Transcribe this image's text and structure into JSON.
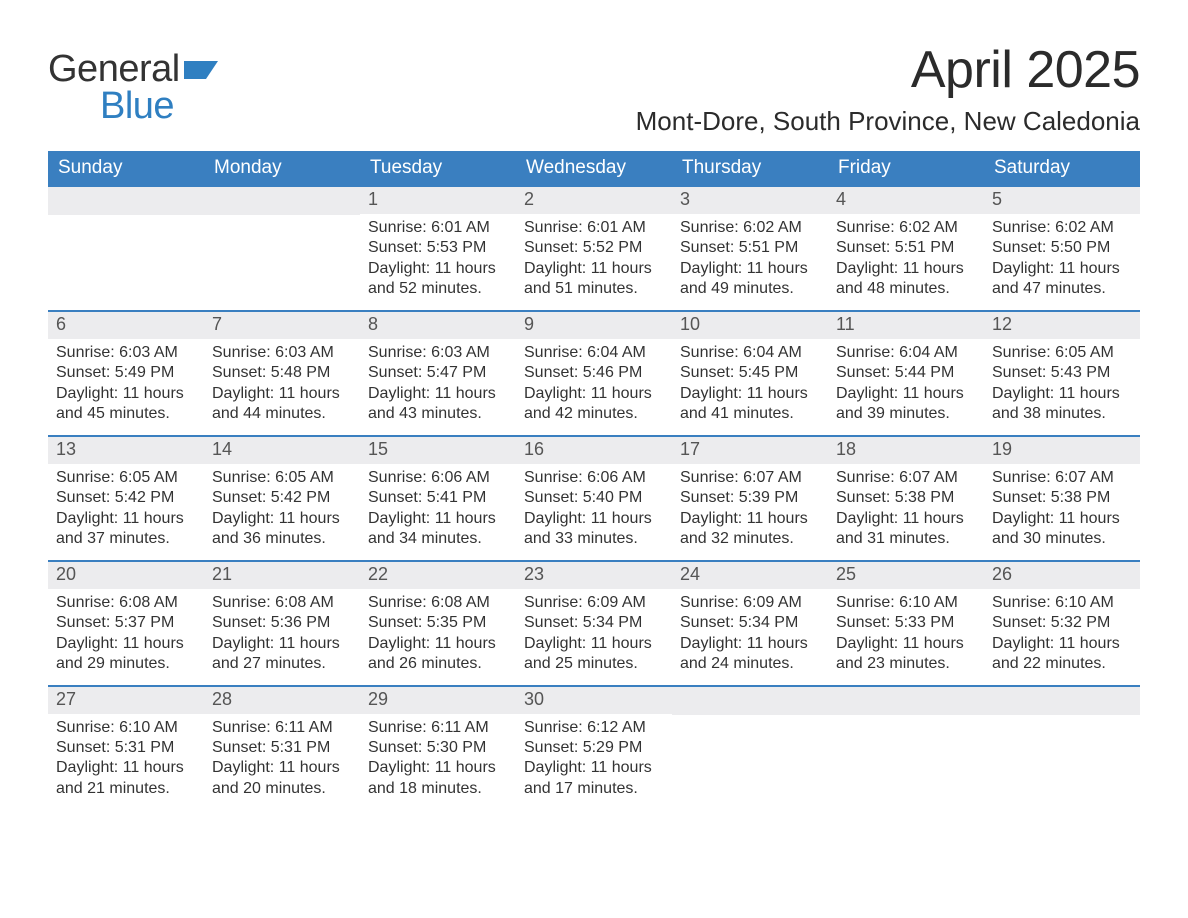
{
  "brand": {
    "word1": "General",
    "word2": "Blue",
    "text_color": "#333333",
    "accent_color": "#2f7fc1"
  },
  "title": "April 2025",
  "location": "Mont-Dore, South Province, New Caledonia",
  "colors": {
    "header_bg": "#3a7fc0",
    "header_text": "#ffffff",
    "daynum_bg": "#ececee",
    "daynum_text": "#555555",
    "body_text": "#333333",
    "week_divider": "#3a7fc0",
    "page_bg": "#ffffff"
  },
  "typography": {
    "title_fontsize": 52,
    "location_fontsize": 26,
    "dow_fontsize": 19,
    "daynum_fontsize": 18,
    "body_fontsize": 16
  },
  "days_of_week": [
    "Sunday",
    "Monday",
    "Tuesday",
    "Wednesday",
    "Thursday",
    "Friday",
    "Saturday"
  ],
  "weeks": [
    [
      {
        "n": "",
        "lines": []
      },
      {
        "n": "",
        "lines": []
      },
      {
        "n": "1",
        "lines": [
          "Sunrise: 6:01 AM",
          "Sunset: 5:53 PM",
          "Daylight: 11 hours and 52 minutes."
        ]
      },
      {
        "n": "2",
        "lines": [
          "Sunrise: 6:01 AM",
          "Sunset: 5:52 PM",
          "Daylight: 11 hours and 51 minutes."
        ]
      },
      {
        "n": "3",
        "lines": [
          "Sunrise: 6:02 AM",
          "Sunset: 5:51 PM",
          "Daylight: 11 hours and 49 minutes."
        ]
      },
      {
        "n": "4",
        "lines": [
          "Sunrise: 6:02 AM",
          "Sunset: 5:51 PM",
          "Daylight: 11 hours and 48 minutes."
        ]
      },
      {
        "n": "5",
        "lines": [
          "Sunrise: 6:02 AM",
          "Sunset: 5:50 PM",
          "Daylight: 11 hours and 47 minutes."
        ]
      }
    ],
    [
      {
        "n": "6",
        "lines": [
          "Sunrise: 6:03 AM",
          "Sunset: 5:49 PM",
          "Daylight: 11 hours and 45 minutes."
        ]
      },
      {
        "n": "7",
        "lines": [
          "Sunrise: 6:03 AM",
          "Sunset: 5:48 PM",
          "Daylight: 11 hours and 44 minutes."
        ]
      },
      {
        "n": "8",
        "lines": [
          "Sunrise: 6:03 AM",
          "Sunset: 5:47 PM",
          "Daylight: 11 hours and 43 minutes."
        ]
      },
      {
        "n": "9",
        "lines": [
          "Sunrise: 6:04 AM",
          "Sunset: 5:46 PM",
          "Daylight: 11 hours and 42 minutes."
        ]
      },
      {
        "n": "10",
        "lines": [
          "Sunrise: 6:04 AM",
          "Sunset: 5:45 PM",
          "Daylight: 11 hours and 41 minutes."
        ]
      },
      {
        "n": "11",
        "lines": [
          "Sunrise: 6:04 AM",
          "Sunset: 5:44 PM",
          "Daylight: 11 hours and 39 minutes."
        ]
      },
      {
        "n": "12",
        "lines": [
          "Sunrise: 6:05 AM",
          "Sunset: 5:43 PM",
          "Daylight: 11 hours and 38 minutes."
        ]
      }
    ],
    [
      {
        "n": "13",
        "lines": [
          "Sunrise: 6:05 AM",
          "Sunset: 5:42 PM",
          "Daylight: 11 hours and 37 minutes."
        ]
      },
      {
        "n": "14",
        "lines": [
          "Sunrise: 6:05 AM",
          "Sunset: 5:42 PM",
          "Daylight: 11 hours and 36 minutes."
        ]
      },
      {
        "n": "15",
        "lines": [
          "Sunrise: 6:06 AM",
          "Sunset: 5:41 PM",
          "Daylight: 11 hours and 34 minutes."
        ]
      },
      {
        "n": "16",
        "lines": [
          "Sunrise: 6:06 AM",
          "Sunset: 5:40 PM",
          "Daylight: 11 hours and 33 minutes."
        ]
      },
      {
        "n": "17",
        "lines": [
          "Sunrise: 6:07 AM",
          "Sunset: 5:39 PM",
          "Daylight: 11 hours and 32 minutes."
        ]
      },
      {
        "n": "18",
        "lines": [
          "Sunrise: 6:07 AM",
          "Sunset: 5:38 PM",
          "Daylight: 11 hours and 31 minutes."
        ]
      },
      {
        "n": "19",
        "lines": [
          "Sunrise: 6:07 AM",
          "Sunset: 5:38 PM",
          "Daylight: 11 hours and 30 minutes."
        ]
      }
    ],
    [
      {
        "n": "20",
        "lines": [
          "Sunrise: 6:08 AM",
          "Sunset: 5:37 PM",
          "Daylight: 11 hours and 29 minutes."
        ]
      },
      {
        "n": "21",
        "lines": [
          "Sunrise: 6:08 AM",
          "Sunset: 5:36 PM",
          "Daylight: 11 hours and 27 minutes."
        ]
      },
      {
        "n": "22",
        "lines": [
          "Sunrise: 6:08 AM",
          "Sunset: 5:35 PM",
          "Daylight: 11 hours and 26 minutes."
        ]
      },
      {
        "n": "23",
        "lines": [
          "Sunrise: 6:09 AM",
          "Sunset: 5:34 PM",
          "Daylight: 11 hours and 25 minutes."
        ]
      },
      {
        "n": "24",
        "lines": [
          "Sunrise: 6:09 AM",
          "Sunset: 5:34 PM",
          "Daylight: 11 hours and 24 minutes."
        ]
      },
      {
        "n": "25",
        "lines": [
          "Sunrise: 6:10 AM",
          "Sunset: 5:33 PM",
          "Daylight: 11 hours and 23 minutes."
        ]
      },
      {
        "n": "26",
        "lines": [
          "Sunrise: 6:10 AM",
          "Sunset: 5:32 PM",
          "Daylight: 11 hours and 22 minutes."
        ]
      }
    ],
    [
      {
        "n": "27",
        "lines": [
          "Sunrise: 6:10 AM",
          "Sunset: 5:31 PM",
          "Daylight: 11 hours and 21 minutes."
        ]
      },
      {
        "n": "28",
        "lines": [
          "Sunrise: 6:11 AM",
          "Sunset: 5:31 PM",
          "Daylight: 11 hours and 20 minutes."
        ]
      },
      {
        "n": "29",
        "lines": [
          "Sunrise: 6:11 AM",
          "Sunset: 5:30 PM",
          "Daylight: 11 hours and 18 minutes."
        ]
      },
      {
        "n": "30",
        "lines": [
          "Sunrise: 6:12 AM",
          "Sunset: 5:29 PM",
          "Daylight: 11 hours and 17 minutes."
        ]
      },
      {
        "n": "",
        "lines": []
      },
      {
        "n": "",
        "lines": []
      },
      {
        "n": "",
        "lines": []
      }
    ]
  ]
}
